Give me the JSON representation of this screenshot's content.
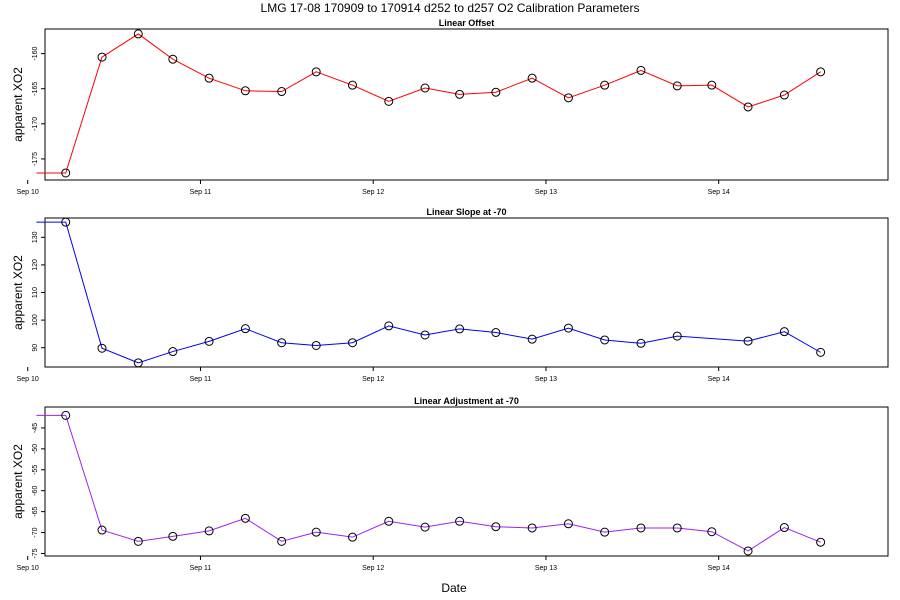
{
  "title": "LMG   17-08    170909 to 170914    d252 to d257   O2 Calibration Parameters",
  "xlabel": "Date",
  "chart_data": [
    {
      "type": "line",
      "title": "Linear Offset",
      "ylabel": "apparent XO2",
      "color": "#ff0000",
      "xlim": [
        10.1,
        14.98
      ],
      "ylim": [
        -178,
        -156.5
      ],
      "x_ticks": [
        10,
        11,
        12,
        13,
        14
      ],
      "x_tick_labels": [
        "Sep 10",
        "Sep 11",
        "Sep 12",
        "Sep 13",
        "Sep 14"
      ],
      "y_ticks": [
        -175,
        -170,
        -165,
        -160
      ],
      "y_tick_labels": [
        "-175",
        "-170",
        "-165",
        "-160"
      ],
      "start_x": 10.05,
      "x": [
        10.22,
        10.43,
        10.64,
        10.84,
        11.05,
        11.26,
        11.47,
        11.67,
        11.88,
        12.09,
        12.3,
        12.5,
        12.71,
        12.92,
        13.13,
        13.34,
        13.55,
        13.76,
        13.96,
        14.17,
        14.38,
        14.59
      ],
      "values": [
        -177,
        -160.5,
        -157.2,
        -160.8,
        -163.5,
        -165.3,
        -165.4,
        -162.6,
        -164.5,
        -166.8,
        -164.9,
        -165.8,
        -165.5,
        -163.5,
        -166.3,
        -164.5,
        -162.4,
        -164.6,
        -164.5,
        -167.6,
        -165.9,
        -162.6
      ]
    },
    {
      "type": "line",
      "title": "Linear Slope at -70",
      "ylabel": "apparent XO2",
      "color": "#0000ff",
      "xlim": [
        10.1,
        14.98
      ],
      "ylim": [
        83,
        137
      ],
      "x_ticks": [
        10,
        11,
        12,
        13,
        14
      ],
      "x_tick_labels": [
        "Sep 10",
        "Sep 11",
        "Sep 12",
        "Sep 13",
        "Sep 14"
      ],
      "y_ticks": [
        90,
        100,
        110,
        120,
        130
      ],
      "y_tick_labels": [
        "90",
        "100",
        "110",
        "120",
        "130"
      ],
      "start_x": 10.05,
      "x": [
        10.22,
        10.43,
        10.64,
        10.84,
        11.05,
        11.26,
        11.47,
        11.67,
        11.88,
        12.09,
        12.3,
        12.5,
        12.71,
        12.92,
        13.13,
        13.34,
        13.55,
        13.76,
        14.17,
        14.38,
        14.59
      ],
      "values": [
        135.5,
        89.8,
        84.5,
        88.6,
        92.3,
        96.9,
        91.8,
        90.8,
        91.8,
        97.9,
        94.6,
        96.8,
        95.5,
        93.1,
        97.1,
        92.8,
        91.6,
        94.2,
        92.4,
        95.8,
        88.3
      ]
    },
    {
      "type": "line",
      "title": "Linear Adjustment at -70",
      "ylabel": "apparent XO2",
      "color": "#a020f0",
      "xlim": [
        10.1,
        14.98
      ],
      "ylim": [
        -75.6,
        -40
      ],
      "x_ticks": [
        10,
        11,
        12,
        13,
        14
      ],
      "x_tick_labels": [
        "Sep 10",
        "Sep 11",
        "Sep 12",
        "Sep 13",
        "Sep 14"
      ],
      "y_ticks": [
        -75,
        -70,
        -65,
        -60,
        -55,
        -50,
        -45
      ],
      "y_tick_labels": [
        "-75",
        "-70",
        "-65",
        "-60",
        "-55",
        "-50",
        "-45"
      ],
      "start_x": 10.05,
      "x": [
        10.22,
        10.43,
        10.64,
        10.84,
        11.05,
        11.26,
        11.47,
        11.67,
        11.88,
        12.09,
        12.3,
        12.5,
        12.71,
        12.92,
        13.13,
        13.34,
        13.55,
        13.76,
        13.96,
        14.17,
        14.38,
        14.59
      ],
      "values": [
        -42,
        -69.4,
        -72.1,
        -70.9,
        -69.6,
        -66.6,
        -72.1,
        -69.9,
        -71.1,
        -67.3,
        -68.7,
        -67.3,
        -68.6,
        -68.9,
        -67.9,
        -69.9,
        -68.9,
        -68.9,
        -69.8,
        -74.4,
        -68.8,
        -72.3
      ]
    }
  ]
}
